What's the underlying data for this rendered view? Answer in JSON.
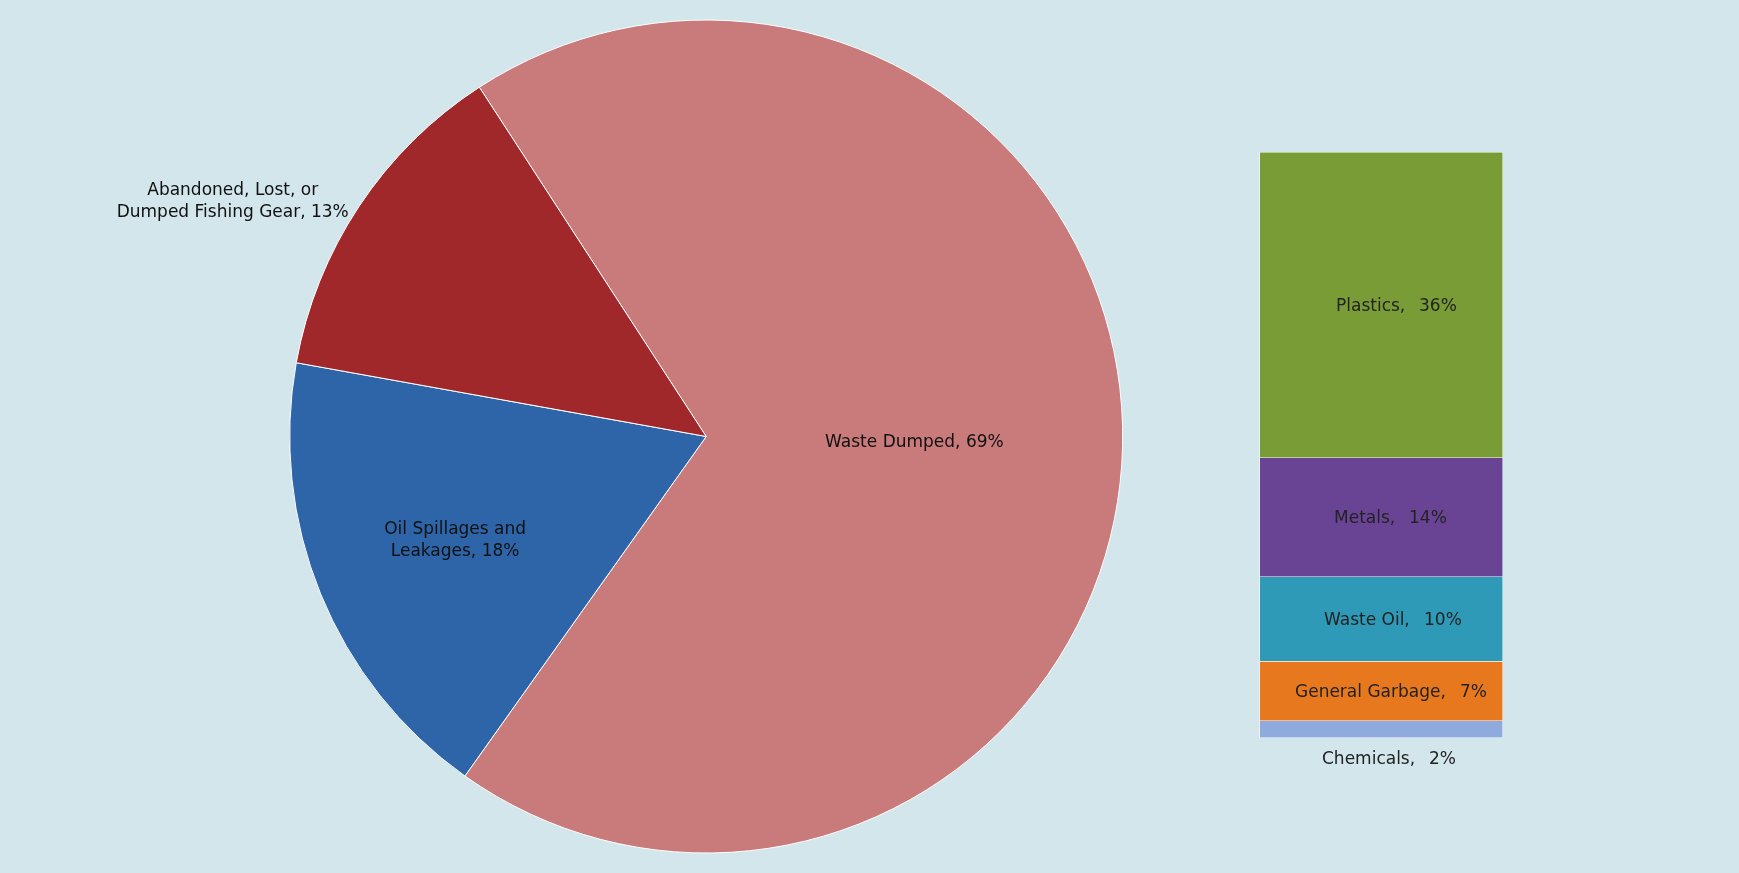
{
  "chart_data": [
    {
      "type": "pie",
      "categories": [
        "Waste Dumped",
        "Oil Spillages and Leakages",
        "Abandoned, Lost, or Dumped Fishing Gear"
      ],
      "values": [
        69,
        18,
        13
      ],
      "colors": [
        "#c97a7a",
        "#2e64a8",
        "#a0282a"
      ],
      "value_labels": [
        "69%",
        "18%",
        "13%"
      ]
    },
    {
      "type": "bar",
      "stacked": true,
      "categories": [
        null
      ],
      "series": [
        {
          "name": "Chemicals,",
          "color": "#8faadc",
          "values": [
            2
          ],
          "value_labels": [
            "2%"
          ]
        },
        {
          "name": "General Garbage,",
          "color": "#e8781e",
          "values": [
            7
          ],
          "value_labels": [
            "7%"
          ]
        },
        {
          "name": "Waste Oil,",
          "color": "#2e9ab8",
          "values": [
            10
          ],
          "value_labels": [
            "10%"
          ]
        },
        {
          "name": "Metals,",
          "color": "#6a4494",
          "values": [
            14
          ],
          "value_labels": [
            "14%"
          ]
        },
        {
          "name": "Plastics,",
          "color": "#7a9c36",
          "values": [
            36
          ],
          "value_labels": [
            "36%"
          ]
        }
      ]
    }
  ]
}
